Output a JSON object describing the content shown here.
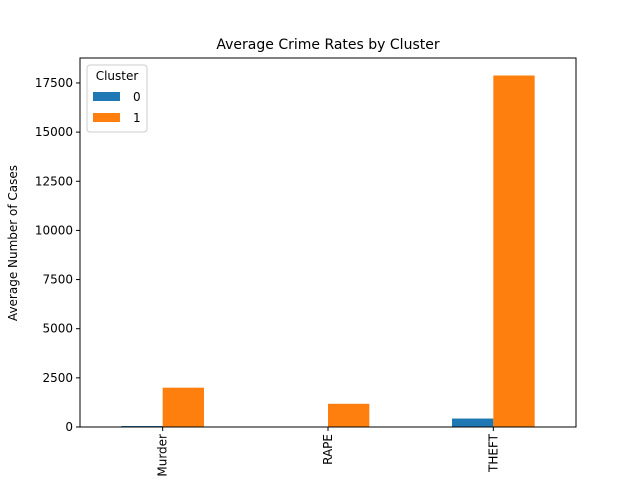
{
  "chart_data": {
    "type": "bar",
    "title": "Average Crime Rates by Cluster",
    "xlabel": "",
    "ylabel": "Average Number of Cases",
    "categories": [
      "Murder",
      "RAPE",
      "THEFT"
    ],
    "series": [
      {
        "name": "0",
        "values": [
          50,
          10,
          430
        ],
        "color": "#1f77b4"
      },
      {
        "name": "1",
        "values": [
          2000,
          1180,
          17880
        ],
        "color": "#ff7f0e"
      }
    ],
    "ylim": [
      0,
      18770
    ],
    "yticks": [
      0,
      2500,
      5000,
      7500,
      10000,
      12500,
      15000,
      17500
    ],
    "legend": {
      "title": "Cluster",
      "placement": "top-left"
    },
    "grid": false,
    "xtick_rotation": 90
  }
}
